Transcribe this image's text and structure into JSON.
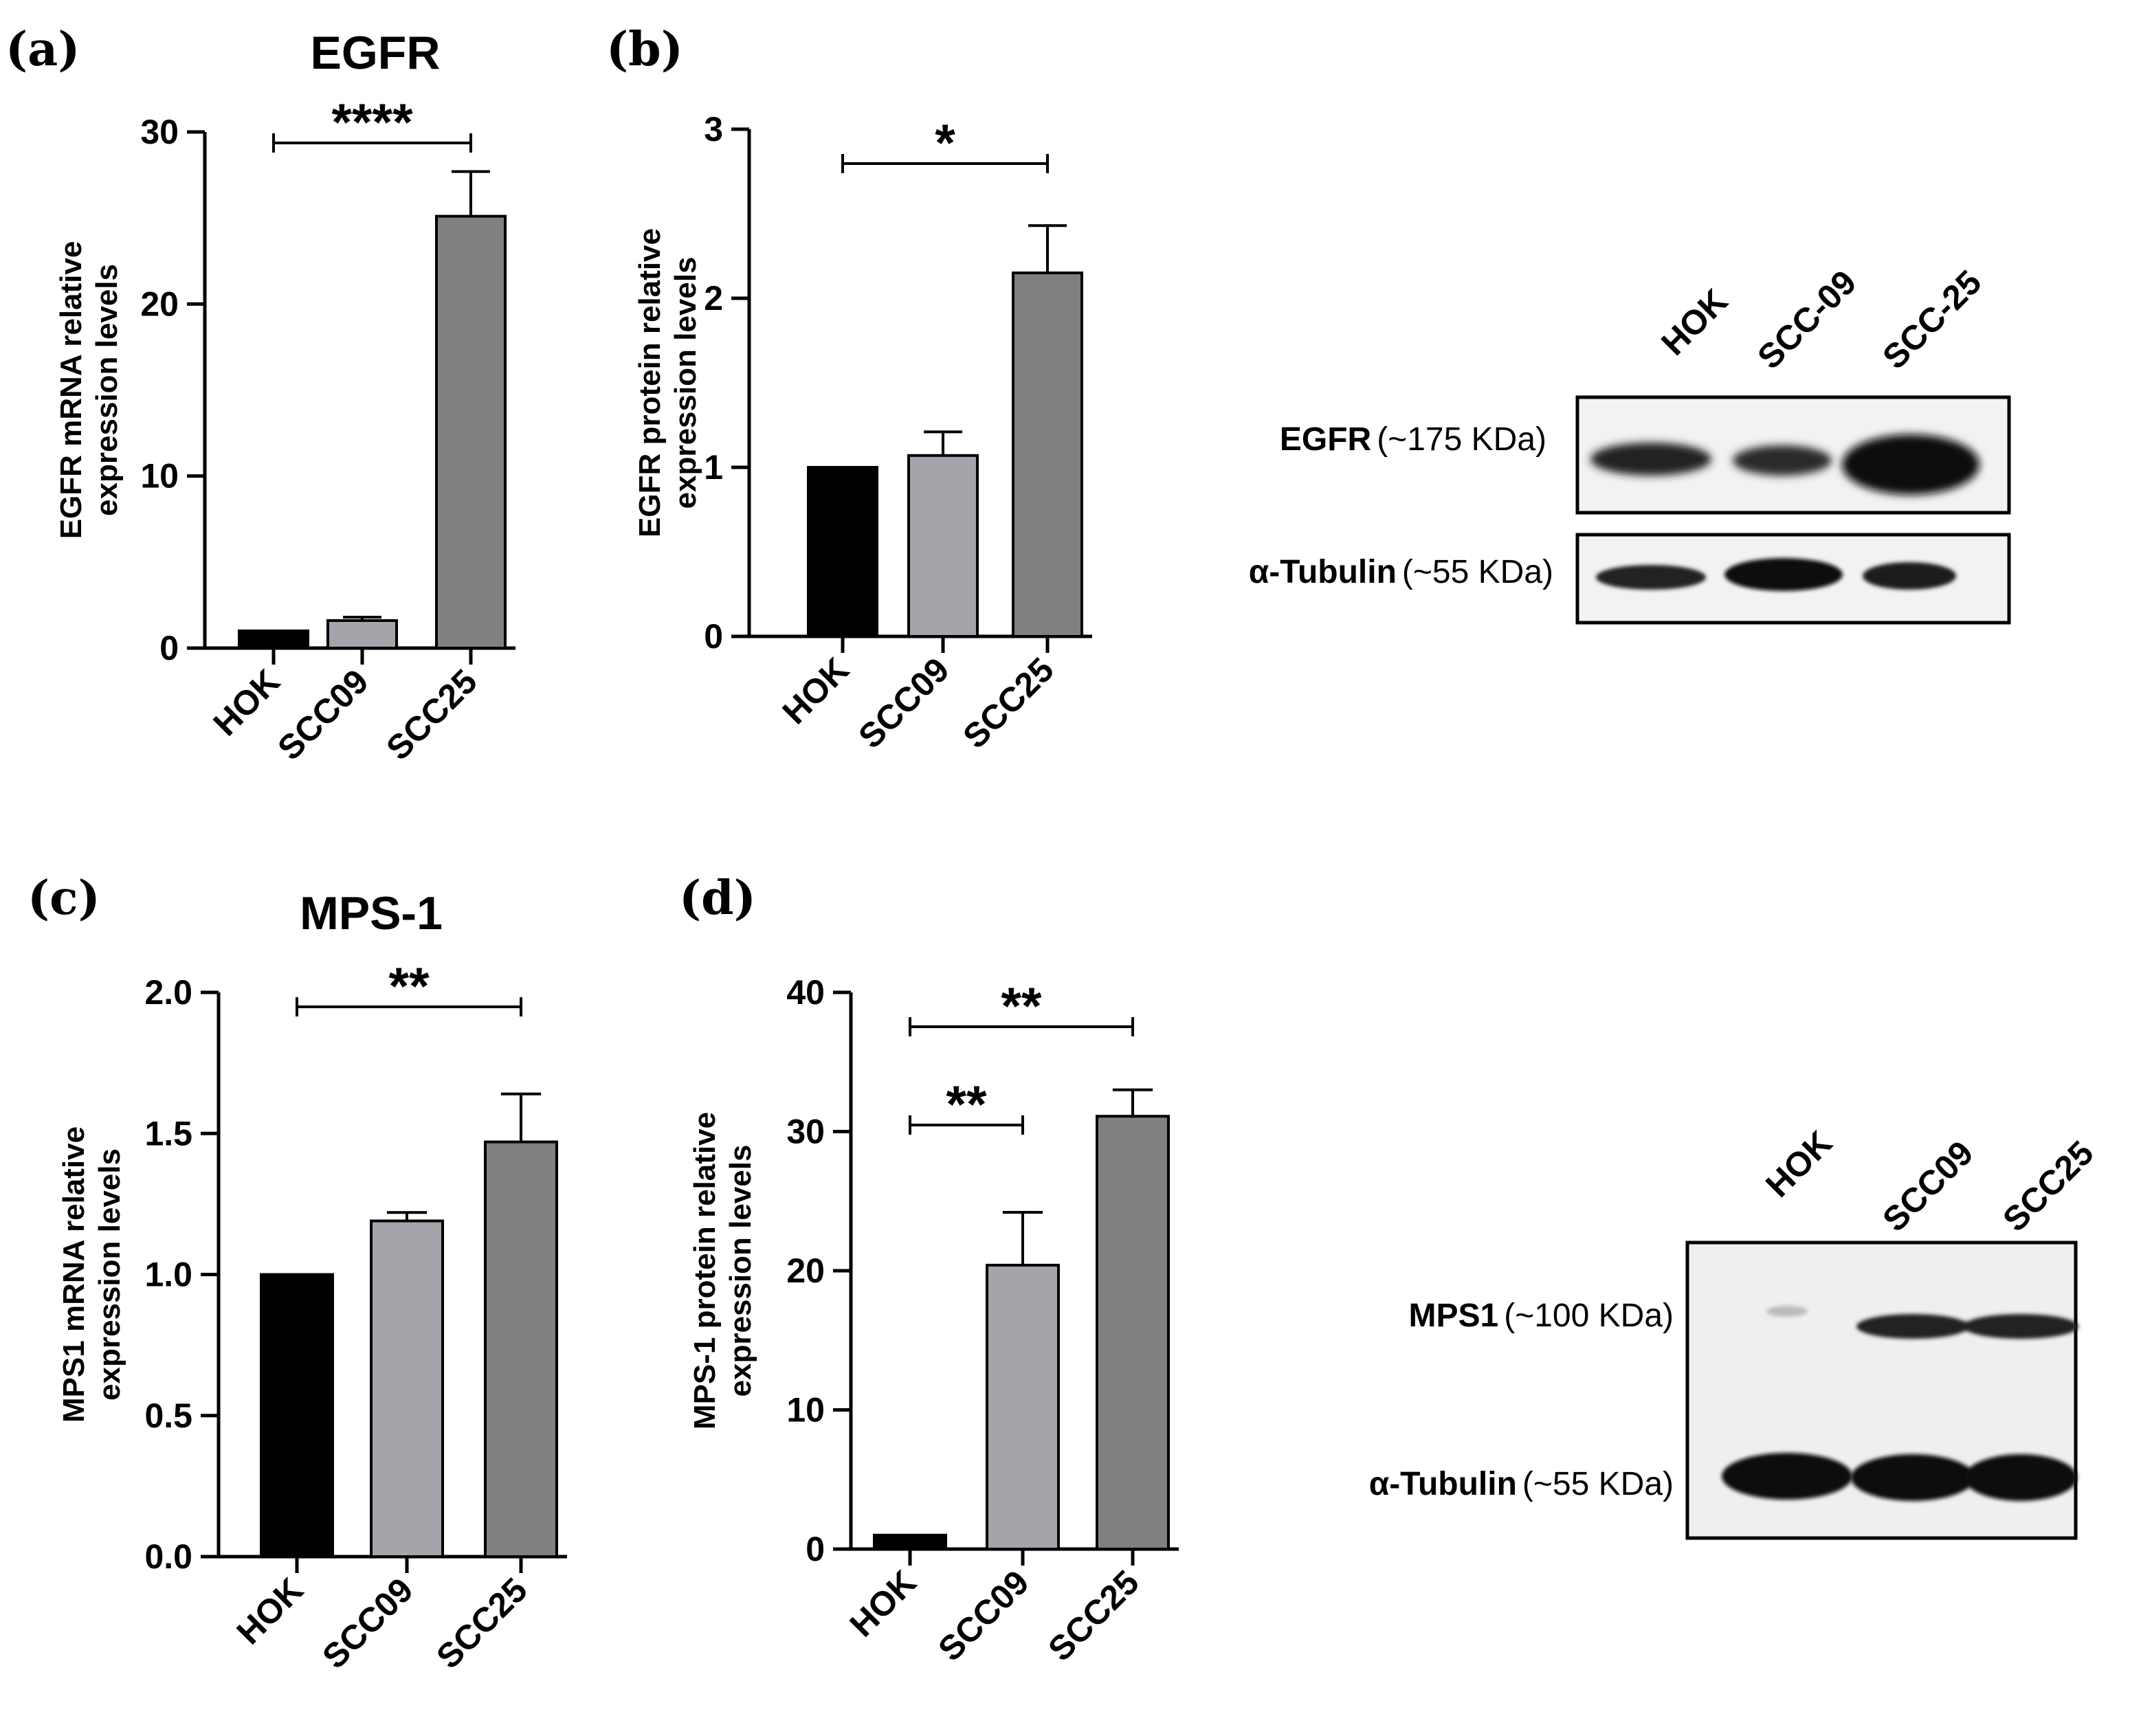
{
  "chart_data": [
    {
      "panel": "(a)",
      "type": "bar",
      "title": "EGFR",
      "ylabel": [
        "EGFR mRNA relative",
        "expression levels"
      ],
      "categories": [
        "HOK",
        "SCC09",
        "SCC25"
      ],
      "values": [
        1.0,
        1.6,
        25.1
      ],
      "errors": [
        0,
        0.2,
        2.6
      ],
      "ylim": [
        0,
        30
      ],
      "yticks": [
        "0",
        "10",
        "20",
        "30"
      ],
      "significance": [
        {
          "from": 0,
          "to": 2,
          "label": "****"
        }
      ],
      "colors": [
        "#000000",
        "#a4a4aa",
        "#808080"
      ]
    },
    {
      "panel": "(b)",
      "type": "bar",
      "title": "",
      "ylabel": [
        "EGFR protein relative",
        "expression levels"
      ],
      "categories": [
        "HOK",
        "SCC09",
        "SCC25"
      ],
      "values": [
        1.0,
        1.07,
        2.15
      ],
      "errors": [
        0,
        0.14,
        0.28
      ],
      "ylim": [
        0,
        3
      ],
      "yticks": [
        "0",
        "1",
        "2",
        "3"
      ],
      "significance": [
        {
          "from": 0,
          "to": 2,
          "label": "*"
        }
      ],
      "colors": [
        "#000000",
        "#a4a4aa",
        "#808080"
      ]
    },
    {
      "panel": "(c)",
      "type": "bar",
      "title": "MPS-1",
      "ylabel": [
        "MPS1 mRNA relative",
        "expression levels"
      ],
      "categories": [
        "HOK",
        "SCC09",
        "SCC25"
      ],
      "values": [
        1.0,
        1.19,
        1.47
      ],
      "errors": [
        0,
        0.03,
        0.17
      ],
      "ylim": [
        0,
        2
      ],
      "yticks": [
        "0.0",
        "0.5",
        "1.0",
        "1.5",
        "2.0"
      ],
      "significance": [
        {
          "from": 0,
          "to": 2,
          "label": "**"
        }
      ],
      "colors": [
        "#000000",
        "#a4a4aa",
        "#808080"
      ]
    },
    {
      "panel": "(d)",
      "type": "bar",
      "title": "",
      "ylabel": [
        "MPS-1 protein relative",
        "expression levels"
      ],
      "categories": [
        "HOK",
        "SCC09",
        "SCC25"
      ],
      "values": [
        1.0,
        20.4,
        31.1
      ],
      "errors": [
        0,
        3.8,
        1.9
      ],
      "ylim": [
        0,
        40
      ],
      "yticks": [
        "0",
        "10",
        "20",
        "30",
        "40"
      ],
      "significance": [
        {
          "from": 0,
          "to": 2,
          "label": "**"
        },
        {
          "from": 0,
          "to": 1,
          "label": "**"
        }
      ],
      "colors": [
        "#000000",
        "#a4a4aa",
        "#808080"
      ]
    }
  ],
  "blots": [
    {
      "lanes": [
        "HOK",
        "SCC-09",
        "SCC-25"
      ],
      "rows": [
        {
          "protein": "EGFR",
          "size": "(~175 KDa)"
        },
        {
          "protein": "α-Tubulin",
          "size": "(~55 KDa)"
        }
      ]
    },
    {
      "lanes": [
        "HOK",
        "SCC09",
        "SCC25"
      ],
      "rows": [
        {
          "protein": "MPS1",
          "size": "(~100 KDa)"
        },
        {
          "protein": "α-Tubulin",
          "size": "(~55 KDa)"
        }
      ]
    }
  ]
}
